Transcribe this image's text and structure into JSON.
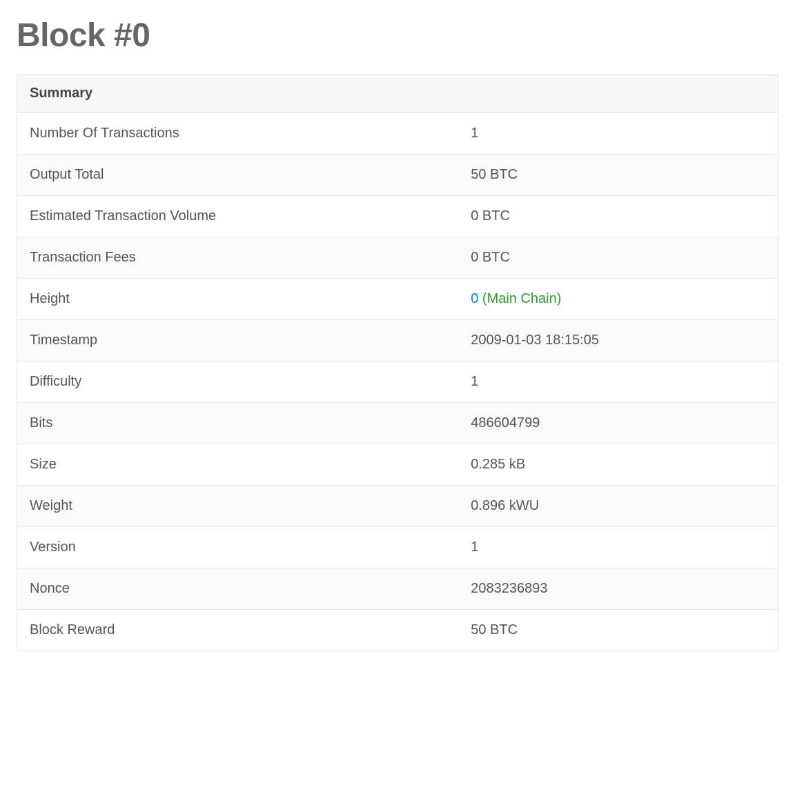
{
  "page_title": "Block #0",
  "summary": {
    "header": "Summary",
    "rows": [
      {
        "label": "Number Of Transactions",
        "value": "1"
      },
      {
        "label": "Output Total",
        "value": "50 BTC"
      },
      {
        "label": "Estimated Transaction Volume",
        "value": "0 BTC"
      },
      {
        "label": "Transaction Fees",
        "value": "0 BTC"
      },
      {
        "label": "Height",
        "value_link": "0",
        "value_suffix": " (Main Chain)",
        "is_height": true
      },
      {
        "label": "Timestamp",
        "value": "2009-01-03 18:15:05"
      },
      {
        "label": "Difficulty",
        "value": "1"
      },
      {
        "label": "Bits",
        "value": "486604799"
      },
      {
        "label": "Size",
        "value": "0.285 kB"
      },
      {
        "label": "Weight",
        "value": "0.896 kWU"
      },
      {
        "label": "Version",
        "value": "1"
      },
      {
        "label": "Nonce",
        "value": "2083236893"
      },
      {
        "label": "Block Reward",
        "value": "50 BTC"
      }
    ]
  },
  "colors": {
    "title": "#666666",
    "text": "#555555",
    "border": "#e5e5e5",
    "row_alt_bg": "#f9f9f9",
    "header_bg": "#f7f7f7",
    "link": "#0088cc",
    "chain": "#2e9c2e"
  }
}
